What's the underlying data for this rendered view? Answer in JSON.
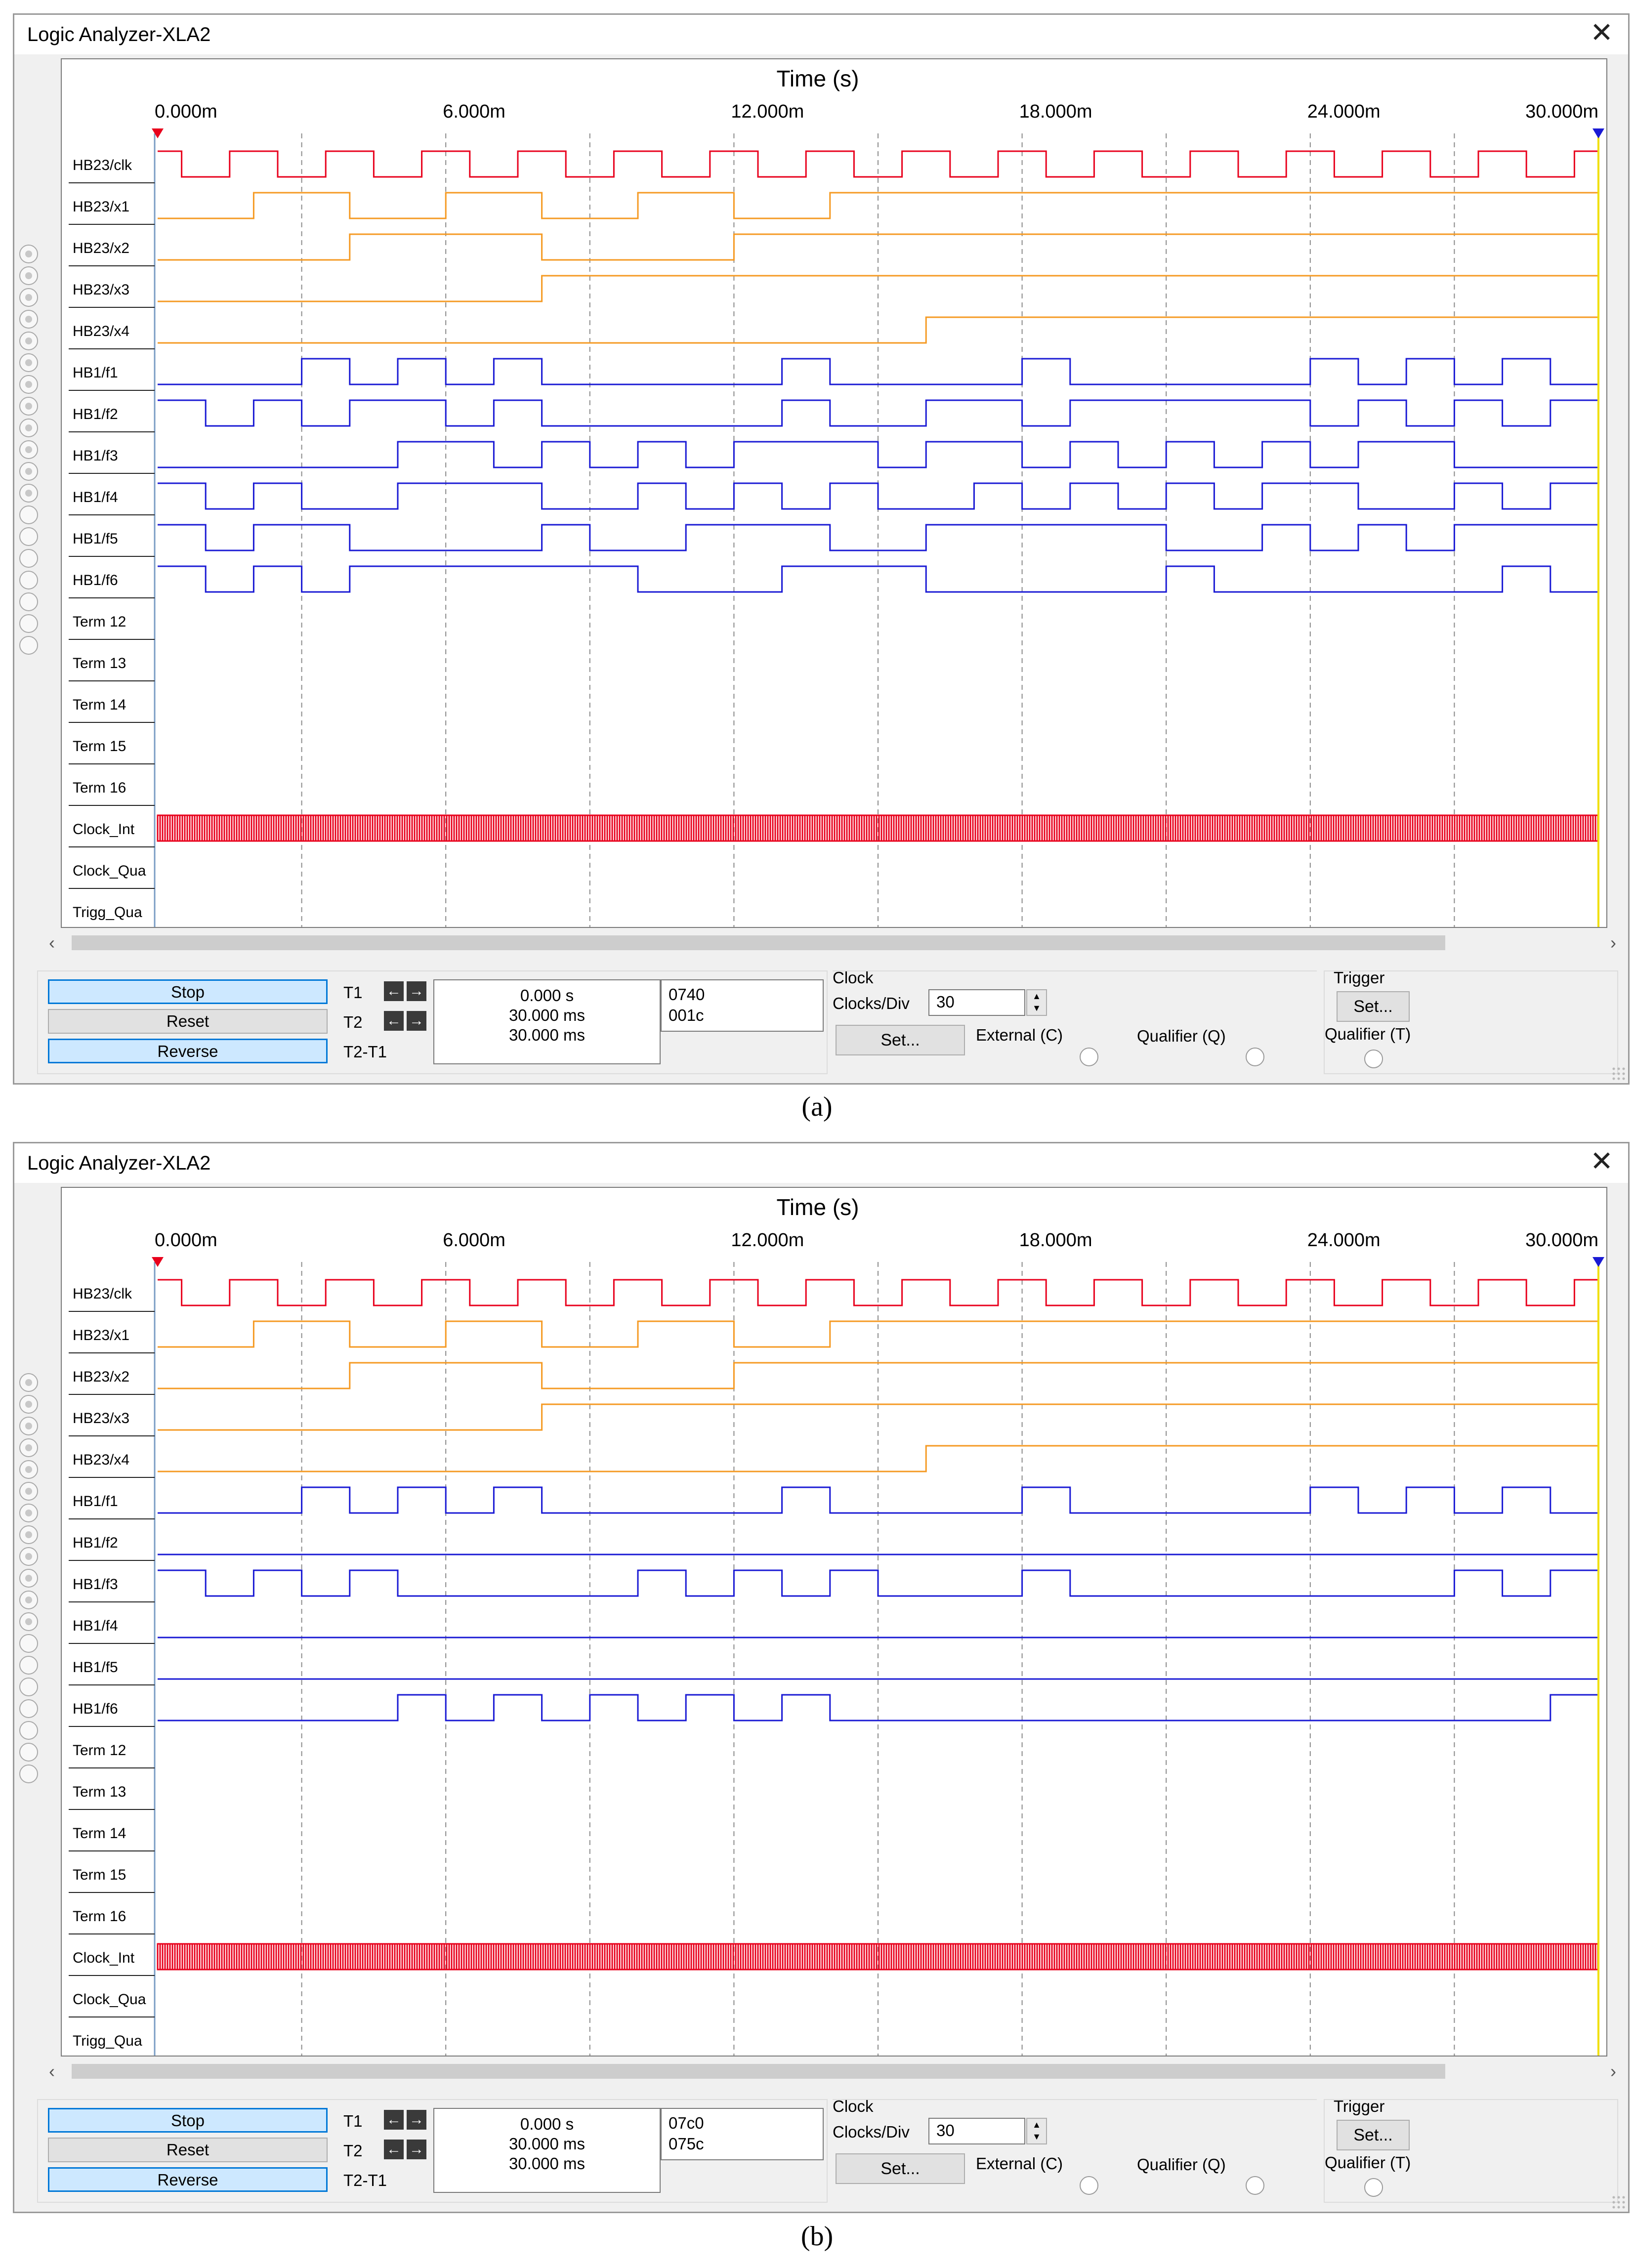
{
  "windows": [
    {
      "id": "a",
      "title": "Logic Analyzer-XLA2",
      "caption": "(a)",
      "hex": [
        "0740",
        "001c"
      ],
      "signals": [
        {
          "name": "HB23/clk",
          "color": "#e8001c",
          "edges": [
            0,
            1,
            2,
            3,
            4,
            5,
            6,
            7,
            8,
            9,
            10,
            11,
            12,
            13,
            14,
            15,
            16,
            17,
            18,
            19,
            20,
            21,
            22,
            23,
            24,
            25,
            26,
            27,
            28,
            29
          ],
          "start": 1
        },
        {
          "name": "HB23/x1",
          "color": "#f59a23",
          "edges": [
            4,
            8,
            12,
            16,
            20,
            24,
            28
          ],
          "start": 0
        },
        {
          "name": "HB23/x2",
          "color": "#f59a23",
          "edges": [
            8,
            16,
            24
          ],
          "start": 0
        },
        {
          "name": "HB23/x3",
          "color": "#f59a23",
          "edges": [
            16
          ],
          "start": 0
        },
        {
          "name": "HB23/x4",
          "color": "#f59a23",
          "edges": [
            32
          ],
          "start": 0
        },
        {
          "name": "HB1/f1",
          "color": "#1a1ad4",
          "edges": [
            6,
            8,
            10,
            12,
            14,
            16,
            26,
            28,
            36,
            38,
            48,
            50,
            52,
            54,
            56,
            58,
            60
          ],
          "start": 0
        },
        {
          "name": "HB1/f2",
          "color": "#1a1ad4",
          "edges": [
            2,
            4,
            6,
            8,
            12,
            14,
            16,
            26,
            28,
            32,
            36,
            38,
            48,
            50,
            52,
            54,
            56,
            58,
            60
          ],
          "start": 1
        },
        {
          "name": "HB1/f3",
          "color": "#1a1ad4",
          "edges": [
            10,
            14,
            16,
            18,
            20,
            22,
            24,
            30,
            32,
            36,
            38,
            40,
            42,
            44,
            46,
            48,
            50,
            54
          ],
          "start": 0
        },
        {
          "name": "HB1/f4",
          "color": "#1a1ad4",
          "edges": [
            2,
            4,
            6,
            10,
            16,
            20,
            22,
            24,
            26,
            28,
            30,
            34,
            36,
            38,
            40,
            42,
            44,
            46,
            50,
            54,
            56,
            58,
            60
          ],
          "start": 1
        },
        {
          "name": "HB1/f5",
          "color": "#1a1ad4",
          "edges": [
            2,
            4,
            8,
            16,
            18,
            22,
            28,
            32,
            42,
            46,
            48,
            50,
            52,
            54
          ],
          "start": 1
        },
        {
          "name": "HB1/f6",
          "color": "#1a1ad4",
          "edges": [
            2,
            4,
            6,
            8,
            20,
            26,
            32,
            42,
            44,
            56,
            58,
            60
          ],
          "start": 1
        },
        {
          "name": "Term 12",
          "color": "#1a1ad4",
          "edges": [],
          "start": -1
        },
        {
          "name": "Term 13",
          "color": "#1a1ad4",
          "edges": [],
          "start": -1
        },
        {
          "name": "Term 14",
          "color": "#1a1ad4",
          "edges": [],
          "start": -1
        },
        {
          "name": "Term 15",
          "color": "#1a1ad4",
          "edges": [],
          "start": -1
        },
        {
          "name": "Term 16",
          "color": "#1a1ad4",
          "edges": [],
          "start": -1
        },
        {
          "name": "Clock_Int",
          "color": "#e8001c",
          "edges": [],
          "start": -2
        },
        {
          "name": "Clock_Qua",
          "color": "#1a1ad4",
          "edges": [],
          "start": -1
        },
        {
          "name": "Trigg_Qua",
          "color": "#1a1ad4",
          "edges": [],
          "start": -1
        }
      ]
    },
    {
      "id": "b",
      "title": "Logic Analyzer-XLA2",
      "caption": "(b)",
      "hex": [
        "07c0",
        "075c"
      ],
      "signals": [
        {
          "name": "HB23/clk",
          "color": "#e8001c",
          "edges": [
            0,
            1,
            2,
            3,
            4,
            5,
            6,
            7,
            8,
            9,
            10,
            11,
            12,
            13,
            14,
            15,
            16,
            17,
            18,
            19,
            20,
            21,
            22,
            23,
            24,
            25,
            26,
            27,
            28,
            29
          ],
          "start": 1
        },
        {
          "name": "HB23/x1",
          "color": "#f59a23",
          "edges": [
            4,
            8,
            12,
            16,
            20,
            24,
            28
          ],
          "start": 0
        },
        {
          "name": "HB23/x2",
          "color": "#f59a23",
          "edges": [
            8,
            16,
            24
          ],
          "start": 0
        },
        {
          "name": "HB23/x3",
          "color": "#f59a23",
          "edges": [
            16
          ],
          "start": 0
        },
        {
          "name": "HB23/x4",
          "color": "#f59a23",
          "edges": [
            32
          ],
          "start": 0
        },
        {
          "name": "HB1/f1",
          "color": "#1a1ad4",
          "edges": [
            6,
            8,
            10,
            12,
            14,
            16,
            26,
            28,
            36,
            38,
            48,
            50,
            52,
            54,
            56,
            58,
            60
          ],
          "start": 0
        },
        {
          "name": "HB1/f2",
          "color": "#1a1ad4",
          "edges": [],
          "start": 0
        },
        {
          "name": "HB1/f3",
          "color": "#1a1ad4",
          "edges": [
            2,
            4,
            6,
            8,
            10,
            20,
            22,
            24,
            26,
            28,
            30,
            36,
            38,
            54,
            56,
            58,
            60
          ],
          "start": 1
        },
        {
          "name": "HB1/f4",
          "color": "#1a1ad4",
          "edges": [],
          "start": 0
        },
        {
          "name": "HB1/f5",
          "color": "#1a1ad4",
          "edges": [],
          "start": 0
        },
        {
          "name": "HB1/f6",
          "color": "#1a1ad4",
          "edges": [
            10,
            12,
            14,
            16,
            18,
            20,
            22,
            24,
            26,
            28,
            58,
            60
          ],
          "start": 0
        },
        {
          "name": "Term 12",
          "color": "#1a1ad4",
          "edges": [],
          "start": -1
        },
        {
          "name": "Term 13",
          "color": "#1a1ad4",
          "edges": [],
          "start": -1
        },
        {
          "name": "Term 14",
          "color": "#1a1ad4",
          "edges": [],
          "start": -1
        },
        {
          "name": "Term 15",
          "color": "#1a1ad4",
          "edges": [],
          "start": -1
        },
        {
          "name": "Term 16",
          "color": "#1a1ad4",
          "edges": [],
          "start": -1
        },
        {
          "name": "Clock_Int",
          "color": "#e8001c",
          "edges": [],
          "start": -2
        },
        {
          "name": "Clock_Qua",
          "color": "#1a1ad4",
          "edges": [],
          "start": -1
        },
        {
          "name": "Trigg_Qua",
          "color": "#1a1ad4",
          "edges": [],
          "start": -1
        }
      ]
    }
  ],
  "axis": {
    "title": "Time (s)",
    "ticks": [
      "0.000m",
      "6.000m",
      "12.000m",
      "18.000m",
      "24.000m",
      "30.000m"
    ]
  },
  "controls": {
    "stop": "Stop",
    "reset": "Reset",
    "reverse": "Reverse",
    "t1_label": "T1",
    "t2_label": "T2",
    "t21_label": "T2-T1",
    "t1_value": "0.000 s",
    "t2_value": "30.000 ms",
    "t21_value": "30.000 ms",
    "clock_group": "Clock",
    "clocks_div_label": "Clocks/Div",
    "clocks_div_value": "30",
    "set_label": "Set...",
    "external_label": "External (C)",
    "qualifier_q_label": "Qualifier (Q)",
    "trigger_group": "Trigger",
    "qualifier_t_label": "Qualifier (T)"
  },
  "colors": {
    "cursor_t1": "#e8001c",
    "cursor_t2": "#1a1ad4",
    "cursor_line": "#f0e000"
  }
}
